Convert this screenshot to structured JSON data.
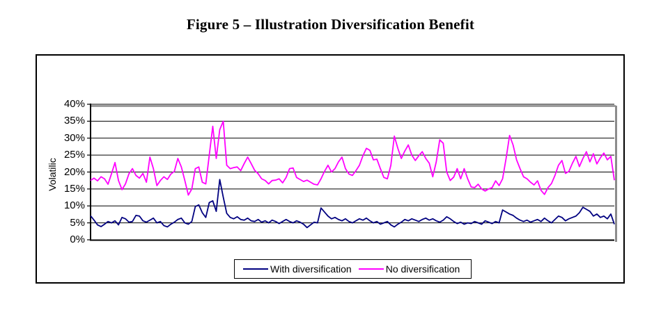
{
  "figure": {
    "title": "Figure 5 – Illustration Diversification Benefit"
  },
  "chart_data": {
    "type": "line",
    "title": "Figure 5 – Illustration Diversification Benefit",
    "xlabel": "",
    "ylabel": "Volatilic",
    "ylim": [
      0,
      40
    ],
    "y_ticks_percent": [
      0,
      5,
      10,
      15,
      20,
      25,
      30,
      35,
      40
    ],
    "y_tick_suffix": "%",
    "x_axis_tick_labels_visible": false,
    "grid": "horizontal",
    "legend_position": "bottom-center",
    "plot_style": {
      "gridline_color": "#000000",
      "shadow_color": "#8c8c8c",
      "axis_color": "#000000",
      "background": "#ffffff"
    },
    "series": [
      {
        "name": "With diversification",
        "color": "#000080",
        "values": [
          7.1,
          5.8,
          4.4,
          3.9,
          4.6,
          5.4,
          5.0,
          5.6,
          4.4,
          6.6,
          6.2,
          5.2,
          5.4,
          7.2,
          7.0,
          5.6,
          5.2,
          5.8,
          6.4,
          5.0,
          5.4,
          4.2,
          3.8,
          4.6,
          5.2,
          6.0,
          6.4,
          5.0,
          4.6,
          5.4,
          9.8,
          10.3,
          8.0,
          6.6,
          11.0,
          11.5,
          8.4,
          17.8,
          12.6,
          7.8,
          6.6,
          6.2,
          6.8,
          6.0,
          5.8,
          6.4,
          5.6,
          5.4,
          6.0,
          5.2,
          5.6,
          5.0,
          5.8,
          5.4,
          4.8,
          5.4,
          6.0,
          5.4,
          5.0,
          5.6,
          5.2,
          4.6,
          3.6,
          4.4,
          5.2,
          5.0,
          9.4,
          8.2,
          7.0,
          6.2,
          6.6,
          6.0,
          5.6,
          6.2,
          5.4,
          5.0,
          5.6,
          6.2,
          5.8,
          6.4,
          5.6,
          5.0,
          5.4,
          4.6,
          5.0,
          5.4,
          4.4,
          3.8,
          4.6,
          5.2,
          6.0,
          5.6,
          6.2,
          5.8,
          5.4,
          6.0,
          6.4,
          5.8,
          6.2,
          5.6,
          5.2,
          5.8,
          6.8,
          6.2,
          5.4,
          4.8,
          5.2,
          4.6,
          5.0,
          4.8,
          5.4,
          5.0,
          4.6,
          5.6,
          5.2,
          4.8,
          5.4,
          5.0,
          8.8,
          8.2,
          7.6,
          7.2,
          6.4,
          5.8,
          5.4,
          5.8,
          5.2,
          5.6,
          6.0,
          5.4,
          6.4,
          5.6,
          5.0,
          6.0,
          7.0,
          6.6,
          5.6,
          6.2,
          6.6,
          7.0,
          8.0,
          9.6,
          9.0,
          8.4,
          7.0,
          7.6,
          6.6,
          7.0,
          6.2,
          7.6,
          4.6
        ]
      },
      {
        "name": "No diversification",
        "color": "#FF00FF",
        "values": [
          17.5,
          18.2,
          17.4,
          18.6,
          18.0,
          16.4,
          19.5,
          22.8,
          17.5,
          14.8,
          16.5,
          19.5,
          21.0,
          19.0,
          18.2,
          19.6,
          17.0,
          24.4,
          21.0,
          16.0,
          17.5,
          18.6,
          17.8,
          19.4,
          20.2,
          24.0,
          21.5,
          17.5,
          13.2,
          15.0,
          21.0,
          21.5,
          17.0,
          16.5,
          25.0,
          33.5,
          24.0,
          32.5,
          35.0,
          22.0,
          21.0,
          21.3,
          21.5,
          20.4,
          22.5,
          24.4,
          22.5,
          20.5,
          19.5,
          18.0,
          17.5,
          16.5,
          17.5,
          17.6,
          18.0,
          16.8,
          18.4,
          21.0,
          21.2,
          18.4,
          17.8,
          17.2,
          17.6,
          17.0,
          16.4,
          16.2,
          18.0,
          20.2,
          22.0,
          20.0,
          21.0,
          23.0,
          24.4,
          21.0,
          19.4,
          19.0,
          20.4,
          22.0,
          24.8,
          27.0,
          26.4,
          23.6,
          23.8,
          21.0,
          18.4,
          18.0,
          22.0,
          30.6,
          27.0,
          24.0,
          26.2,
          28.0,
          25.0,
          23.4,
          24.8,
          26.0,
          24.0,
          22.6,
          18.6,
          23.0,
          29.5,
          28.5,
          20.0,
          17.5,
          18.5,
          21.0,
          18.0,
          21.0,
          18.0,
          15.6,
          15.4,
          16.4,
          15.0,
          14.4,
          15.0,
          15.4,
          17.4,
          16.0,
          18.0,
          24.0,
          30.8,
          28.0,
          23.6,
          21.0,
          18.6,
          18.0,
          17.0,
          16.2,
          17.4,
          14.6,
          13.4,
          15.4,
          16.6,
          19.0,
          22.0,
          23.4,
          19.6,
          20.2,
          22.6,
          24.6,
          21.6,
          24.0,
          26.0,
          23.0,
          25.4,
          22.4,
          24.2,
          25.6,
          23.6,
          24.6,
          17.6
        ]
      }
    ]
  }
}
